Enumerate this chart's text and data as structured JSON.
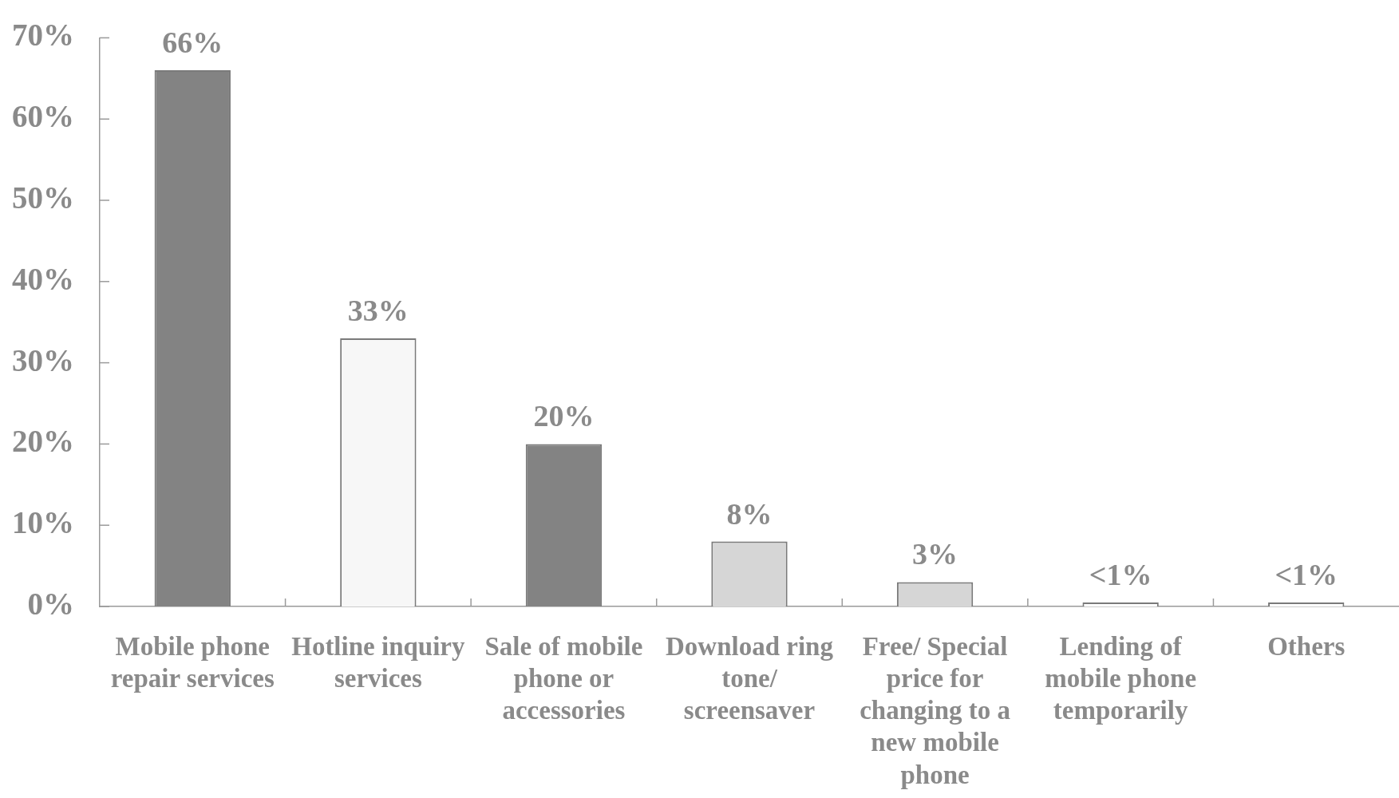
{
  "chart_data": {
    "type": "bar",
    "categories": [
      "Mobile phone repair services",
      "Hotline inquiry services",
      "Sale of mobile phone or accessories",
      "Download ring tone/ screensaver",
      "Free/ Special price for changing to a new mobile phone",
      "Lending of mobile phone temporarily",
      "Others"
    ],
    "values": [
      66,
      33,
      20,
      8,
      3,
      0.5,
      0.5
    ],
    "colors": [
      "#838383",
      "#f7f7f7",
      "#838383",
      "#d6d6d6",
      "#d6d6d6",
      "#ffffff",
      "#ffffff"
    ],
    "value_labels": [
      "66%",
      "33%",
      "20%",
      "8%",
      "3%",
      "<1%",
      "<1%"
    ],
    "ylim": [
      0,
      70
    ],
    "yticks": [
      {
        "value": 0,
        "label": "0%"
      },
      {
        "value": 10,
        "label": "10%"
      },
      {
        "value": 20,
        "label": "20%"
      },
      {
        "value": 30,
        "label": "30%"
      },
      {
        "value": 40,
        "label": "40%"
      },
      {
        "value": 50,
        "label": "50%"
      },
      {
        "value": 60,
        "label": "60%"
      },
      {
        "value": 70,
        "label": "70%"
      }
    ]
  }
}
